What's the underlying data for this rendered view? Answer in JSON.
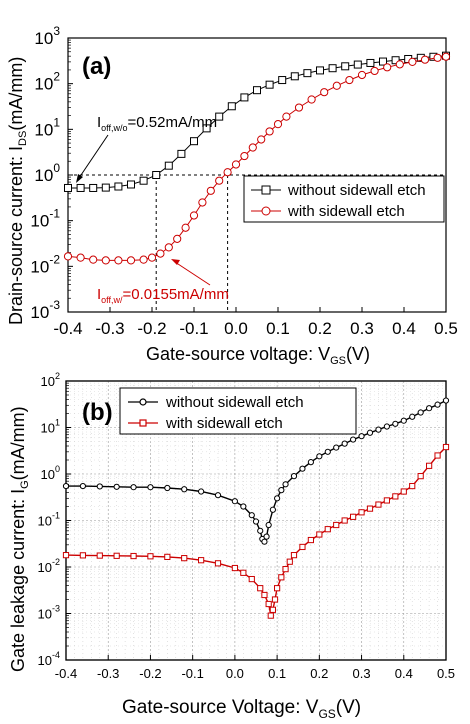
{
  "chart_data": [
    {
      "panel": "(a)",
      "type": "scatter",
      "xlabel": "Gate-source voltage: V",
      "xlabel_sub": "GS",
      "xlabel_unit": "(V)",
      "ylabel": "Drain-source current: I",
      "ylabel_sub": "DS",
      "ylabel_unit": "(mA/mm)",
      "xlim": [
        -0.4,
        0.5
      ],
      "ylim": [
        0.001,
        1000
      ],
      "yscale": "log",
      "xticks": [
        "-0.4",
        "-0.3",
        "-0.2",
        "-0.1",
        "0.0",
        "0.1",
        "0.2",
        "0.3",
        "0.4",
        "0.5"
      ],
      "xtick_values": [
        -0.4,
        -0.3,
        -0.2,
        -0.1,
        0.0,
        0.1,
        0.2,
        0.3,
        0.4,
        0.5
      ],
      "yticks": [
        {
          "base": "10",
          "exp": "-3",
          "value": 0.001
        },
        {
          "base": "10",
          "exp": "-2",
          "value": 0.01
        },
        {
          "base": "10",
          "exp": "-1",
          "value": 0.1
        },
        {
          "base": "10",
          "exp": "0",
          "value": 1
        },
        {
          "base": "10",
          "exp": "1",
          "value": 10
        },
        {
          "base": "10",
          "exp": "2",
          "value": 100
        },
        {
          "base": "10",
          "exp": "3",
          "value": 1000
        }
      ],
      "grid": false,
      "legend_position": "center-right",
      "series": [
        {
          "name": "without sidewall etch",
          "marker": "square",
          "color": "#000000",
          "x": [
            -0.4,
            -0.37,
            -0.34,
            -0.31,
            -0.28,
            -0.25,
            -0.22,
            -0.19,
            -0.16,
            -0.13,
            -0.1,
            -0.07,
            -0.04,
            -0.01,
            0.02,
            0.05,
            0.08,
            0.11,
            0.14,
            0.17,
            0.2,
            0.23,
            0.26,
            0.29,
            0.32,
            0.35,
            0.38,
            0.41,
            0.44,
            0.47,
            0.5
          ],
          "y": [
            0.52,
            0.52,
            0.52,
            0.53,
            0.56,
            0.62,
            0.75,
            1.0,
            1.6,
            2.9,
            5.5,
            10.5,
            19,
            32,
            50,
            72,
            95,
            120,
            145,
            170,
            195,
            218,
            240,
            262,
            284,
            305,
            326,
            347,
            368,
            388,
            410
          ]
        },
        {
          "name": "with sidewall etch",
          "marker": "circle",
          "color": "#cc0000",
          "x": [
            -0.4,
            -0.37,
            -0.34,
            -0.31,
            -0.28,
            -0.25,
            -0.22,
            -0.2,
            -0.18,
            -0.16,
            -0.14,
            -0.12,
            -0.1,
            -0.08,
            -0.06,
            -0.04,
            -0.02,
            0.0,
            0.02,
            0.04,
            0.06,
            0.08,
            0.1,
            0.12,
            0.15,
            0.18,
            0.21,
            0.24,
            0.27,
            0.3,
            0.33,
            0.36,
            0.39,
            0.42,
            0.45,
            0.48,
            0.5
          ],
          "y": [
            0.0165,
            0.0155,
            0.014,
            0.0135,
            0.0135,
            0.0135,
            0.014,
            0.0155,
            0.019,
            0.026,
            0.04,
            0.07,
            0.13,
            0.25,
            0.45,
            0.75,
            1.15,
            1.7,
            2.6,
            4.0,
            6.0,
            9.0,
            13,
            19,
            30,
            45,
            65,
            90,
            120,
            155,
            190,
            228,
            265,
            300,
            335,
            368,
            390
          ]
        }
      ],
      "annotations": [
        {
          "text_main": "I",
          "text_sub": "off,w/o",
          "text_value": "=0.52mA/mm",
          "color": "#000000"
        },
        {
          "text_main": "I",
          "text_sub": "off,w/",
          "text_value": "=0.0155mA/mm",
          "color": "#cc0000"
        }
      ]
    },
    {
      "panel": "(b)",
      "type": "scatter",
      "xlabel": "Gate-source Voltage: V",
      "xlabel_sub": "GS",
      "xlabel_unit": "(V)",
      "ylabel": "Gate leakage current: I",
      "ylabel_sub": "G",
      "ylabel_unit": "(mA/mm)",
      "xlim": [
        -0.4,
        0.5
      ],
      "ylim": [
        0.0001,
        100
      ],
      "yscale": "log",
      "xticks": [
        "-0.4",
        "-0.3",
        "-0.2",
        "-0.1",
        "0.0",
        "0.1",
        "0.2",
        "0.3",
        "0.4",
        "0.5"
      ],
      "xtick_values": [
        -0.4,
        -0.3,
        -0.2,
        -0.1,
        0.0,
        0.1,
        0.2,
        0.3,
        0.4,
        0.5
      ],
      "yticks": [
        {
          "base": "10",
          "exp": "-4",
          "value": 0.0001
        },
        {
          "base": "10",
          "exp": "-3",
          "value": 0.001
        },
        {
          "base": "10",
          "exp": "-2",
          "value": 0.01
        },
        {
          "base": "10",
          "exp": "-1",
          "value": 0.1
        },
        {
          "base": "10",
          "exp": "0",
          "value": 1
        },
        {
          "base": "10",
          "exp": "1",
          "value": 10
        },
        {
          "base": "10",
          "exp": "2",
          "value": 100
        }
      ],
      "grid": true,
      "legend_position": "top-left",
      "series": [
        {
          "name": "without sidewall etch",
          "marker": "circle",
          "color": "#000000",
          "x": [
            -0.4,
            -0.36,
            -0.32,
            -0.28,
            -0.24,
            -0.2,
            -0.16,
            -0.12,
            -0.08,
            -0.04,
            0.0,
            0.02,
            0.04,
            0.05,
            0.06,
            0.065,
            0.07,
            0.075,
            0.08,
            0.09,
            0.1,
            0.11,
            0.12,
            0.14,
            0.16,
            0.18,
            0.2,
            0.22,
            0.24,
            0.26,
            0.28,
            0.3,
            0.32,
            0.34,
            0.36,
            0.38,
            0.4,
            0.42,
            0.44,
            0.46,
            0.48,
            0.5
          ],
          "y": [
            0.55,
            0.55,
            0.54,
            0.53,
            0.52,
            0.52,
            0.5,
            0.47,
            0.42,
            0.35,
            0.26,
            0.2,
            0.13,
            0.095,
            0.06,
            0.04,
            0.035,
            0.045,
            0.08,
            0.17,
            0.3,
            0.45,
            0.6,
            0.9,
            1.3,
            1.8,
            2.4,
            3.0,
            3.7,
            4.5,
            5.5,
            6.5,
            7.7,
            9.0,
            10.5,
            12,
            14,
            17,
            21,
            26,
            31,
            38
          ]
        },
        {
          "name": "with sidewall etch",
          "marker": "square",
          "color": "#cc0000",
          "x": [
            -0.4,
            -0.36,
            -0.32,
            -0.28,
            -0.24,
            -0.2,
            -0.16,
            -0.12,
            -0.08,
            -0.04,
            0.0,
            0.02,
            0.04,
            0.06,
            0.07,
            0.08,
            0.085,
            0.09,
            0.095,
            0.1,
            0.11,
            0.12,
            0.13,
            0.14,
            0.16,
            0.18,
            0.2,
            0.22,
            0.24,
            0.26,
            0.28,
            0.3,
            0.32,
            0.34,
            0.36,
            0.38,
            0.4,
            0.42,
            0.44,
            0.46,
            0.48,
            0.5
          ],
          "y": [
            0.018,
            0.0178,
            0.0176,
            0.0174,
            0.0172,
            0.017,
            0.0165,
            0.0155,
            0.014,
            0.012,
            0.0095,
            0.0075,
            0.0055,
            0.0035,
            0.0025,
            0.0016,
            0.0009,
            0.0012,
            0.002,
            0.0035,
            0.006,
            0.009,
            0.013,
            0.018,
            0.027,
            0.038,
            0.05,
            0.065,
            0.08,
            0.1,
            0.12,
            0.15,
            0.18,
            0.22,
            0.27,
            0.33,
            0.42,
            0.55,
            0.9,
            1.5,
            2.5,
            3.8
          ]
        }
      ]
    }
  ]
}
